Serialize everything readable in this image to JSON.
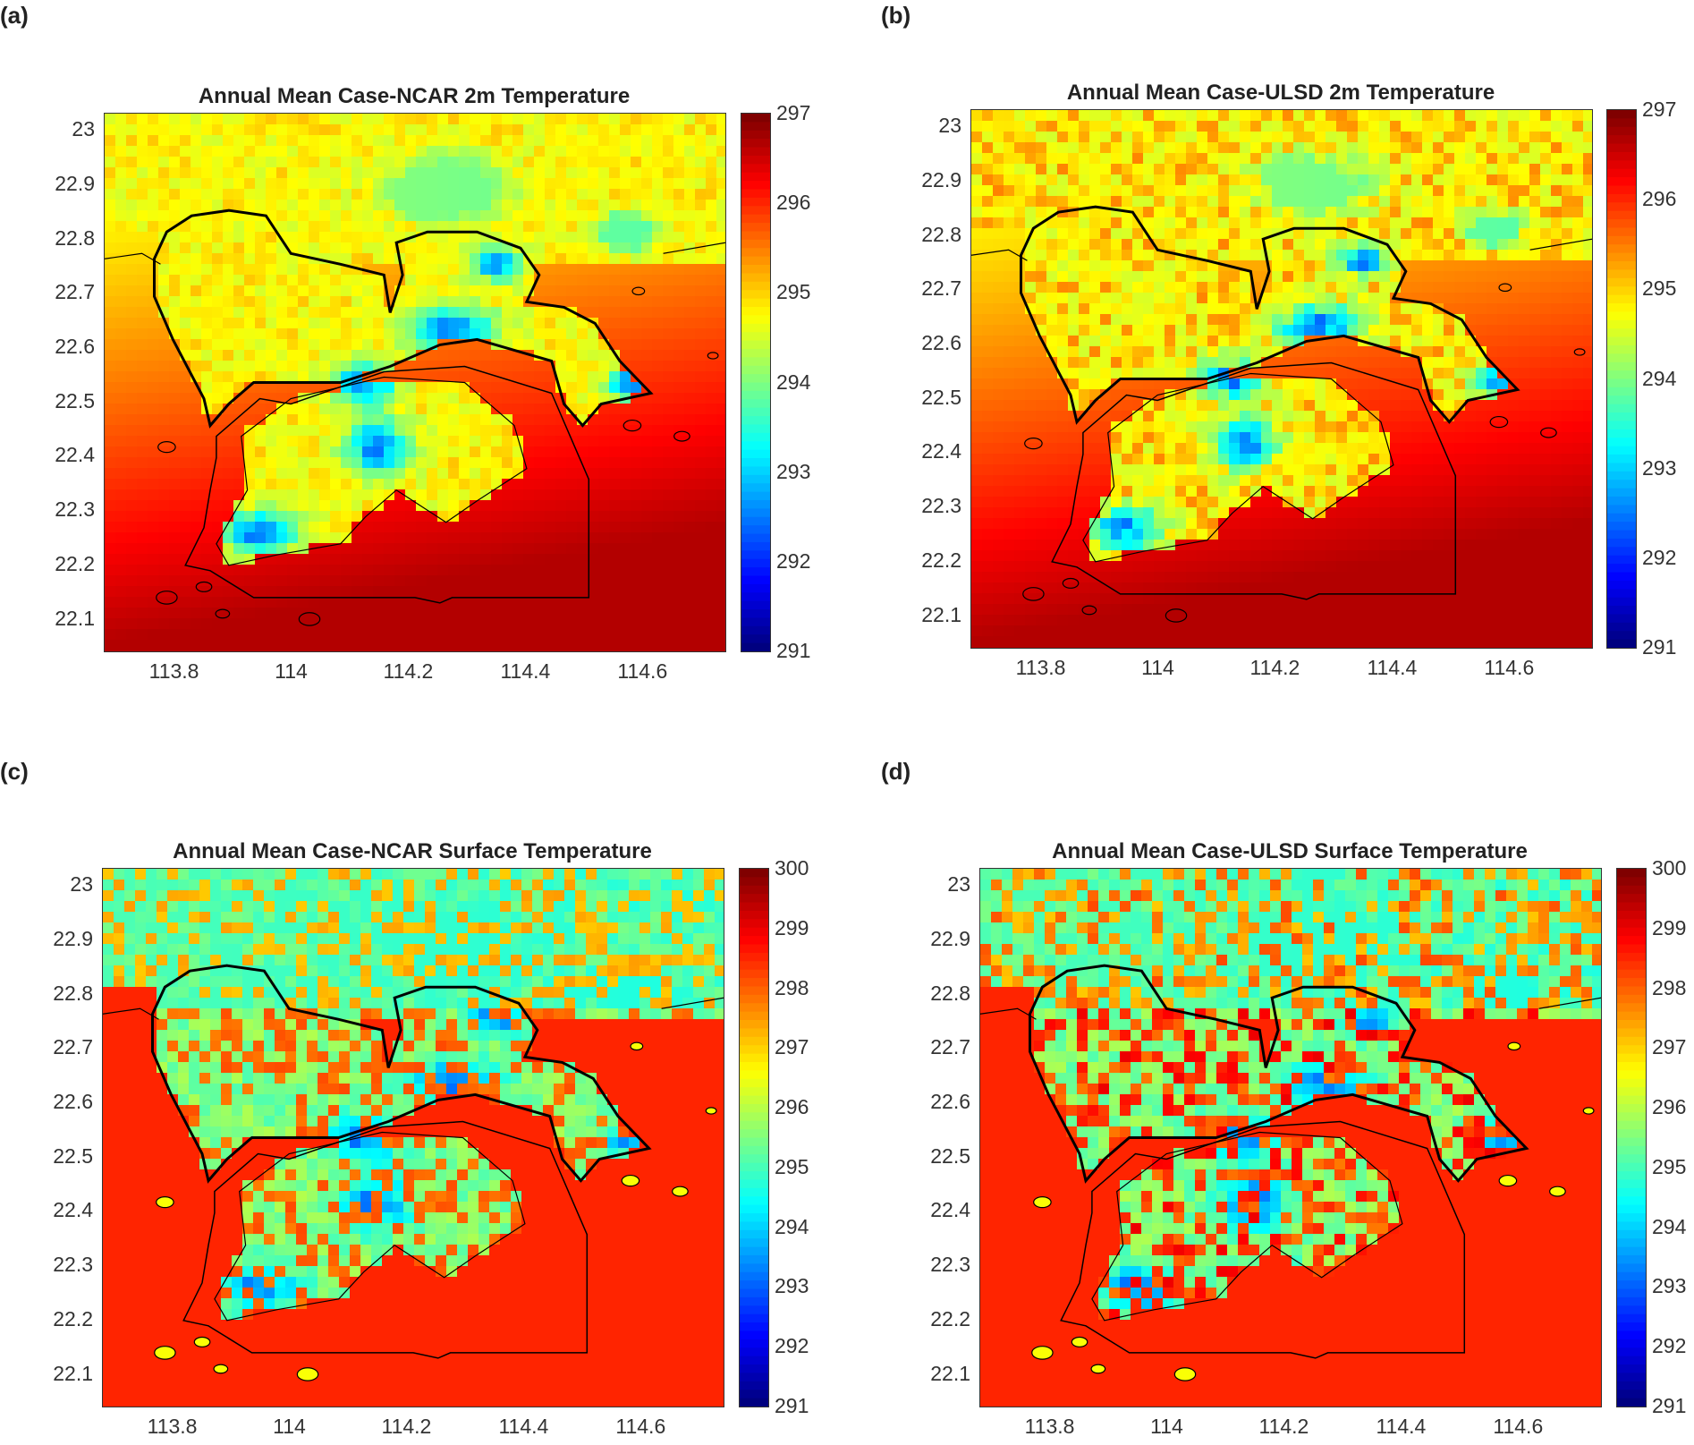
{
  "chart_data": [
    {
      "type": "heatmap",
      "panel_label": "(a)",
      "title": "Annual Mean Case-NCAR 2m Temperature",
      "xticks": [
        "113.8",
        "114",
        "114.2",
        "114.4",
        "114.6"
      ],
      "yticks": [
        "23",
        "22.9",
        "22.8",
        "22.7",
        "22.6",
        "22.5",
        "22.4",
        "22.3",
        "22.2",
        "22.1"
      ],
      "colorbar": {
        "min": 291,
        "max": 297,
        "ticks": [
          "297",
          "296",
          "295",
          "294",
          "293",
          "292",
          "291"
        ]
      },
      "xlim": [
        113.68,
        114.74
      ],
      "ylim": [
        22.04,
        23.03
      ],
      "colormap": "jet",
      "land_pattern": "smooth",
      "hotspot_intensity": 0.1
    },
    {
      "type": "heatmap",
      "panel_label": "(b)",
      "title": "Annual Mean Case-ULSD 2m Temperature",
      "xticks": [
        "113.8",
        "114",
        "114.2",
        "114.4",
        "114.6"
      ],
      "yticks": [
        "23",
        "22.9",
        "22.8",
        "22.7",
        "22.6",
        "22.5",
        "22.4",
        "22.3",
        "22.2",
        "22.1"
      ],
      "colorbar": {
        "min": 291,
        "max": 297,
        "ticks": [
          "297",
          "296",
          "295",
          "294",
          "293",
          "292",
          "291"
        ]
      },
      "xlim": [
        113.68,
        114.74
      ],
      "ylim": [
        22.04,
        23.03
      ],
      "colormap": "jet",
      "land_pattern": "smooth",
      "hotspot_intensity": 0.35
    },
    {
      "type": "heatmap",
      "panel_label": "(c)",
      "title": "Annual Mean Case-NCAR Surface Temperature",
      "xticks": [
        "113.8",
        "114",
        "114.2",
        "114.4",
        "114.6"
      ],
      "yticks": [
        "23",
        "22.9",
        "22.8",
        "22.7",
        "22.6",
        "22.5",
        "22.4",
        "22.3",
        "22.2",
        "22.1"
      ],
      "colorbar": {
        "min": 291,
        "max": 300,
        "ticks": [
          "300",
          "299",
          "298",
          "297",
          "296",
          "295",
          "294",
          "293",
          "292",
          "291"
        ]
      },
      "xlim": [
        113.68,
        114.74
      ],
      "ylim": [
        22.04,
        23.03
      ],
      "colormap": "jet",
      "land_pattern": "blocky",
      "hotspot_intensity": 0.3
    },
    {
      "type": "heatmap",
      "panel_label": "(d)",
      "title": "Annual Mean Case-ULSD Surface Temperature",
      "xticks": [
        "113.8",
        "114",
        "114.2",
        "114.4",
        "114.6"
      ],
      "yticks": [
        "23",
        "22.9",
        "22.8",
        "22.7",
        "22.6",
        "22.5",
        "22.4",
        "22.3",
        "22.2",
        "22.1"
      ],
      "colorbar": {
        "min": 291,
        "max": 300,
        "ticks": [
          "300",
          "299",
          "298",
          "297",
          "296",
          "295",
          "294",
          "293",
          "292",
          "291"
        ]
      },
      "xlim": [
        113.68,
        114.74
      ],
      "ylim": [
        22.04,
        23.03
      ],
      "colormap": "jet",
      "land_pattern": "blocky",
      "hotspot_intensity": 0.8
    }
  ]
}
